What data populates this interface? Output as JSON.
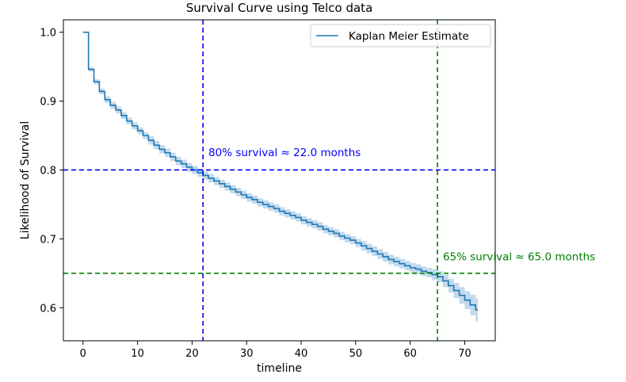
{
  "chart_data": {
    "type": "line",
    "title": "Survival Curve using Telco data",
    "xlabel": "timeline",
    "ylabel": "Likelihood of Survival",
    "xlim": [
      -3.6,
      75.6
    ],
    "ylim": [
      0.552,
      1.018
    ],
    "xticks": [
      0,
      10,
      20,
      30,
      40,
      50,
      60,
      70
    ],
    "yticks": [
      0.6,
      0.7,
      0.8,
      0.9,
      1.0
    ],
    "xtick_labels": [
      "0",
      "10",
      "20",
      "30",
      "40",
      "50",
      "60",
      "70"
    ],
    "ytick_labels": [
      "0.6",
      "0.7",
      "0.8",
      "0.9",
      "1.0"
    ],
    "legend_position": "top-right",
    "grid": false,
    "series": [
      {
        "name": "Kaplan Meier Estimate",
        "color": "#1f77b4",
        "ci_color": "#aecde7",
        "step": true,
        "x": [
          0,
          1,
          2,
          3,
          4,
          5,
          6,
          7,
          8,
          9,
          10,
          11,
          12,
          13,
          14,
          15,
          16,
          17,
          18,
          19,
          20,
          21,
          22,
          23,
          24,
          25,
          26,
          27,
          28,
          29,
          30,
          31,
          32,
          33,
          34,
          35,
          36,
          37,
          38,
          39,
          40,
          41,
          42,
          43,
          44,
          45,
          46,
          47,
          48,
          49,
          50,
          51,
          52,
          53,
          54,
          55,
          56,
          57,
          58,
          59,
          60,
          61,
          62,
          63,
          64,
          65,
          66,
          67,
          68,
          69,
          70,
          71,
          72
        ],
        "y": [
          1.0,
          0.946,
          0.928,
          0.914,
          0.902,
          0.894,
          0.887,
          0.879,
          0.871,
          0.864,
          0.857,
          0.85,
          0.843,
          0.836,
          0.83,
          0.825,
          0.819,
          0.813,
          0.809,
          0.804,
          0.8,
          0.796,
          0.792,
          0.788,
          0.784,
          0.78,
          0.776,
          0.772,
          0.768,
          0.764,
          0.76,
          0.757,
          0.753,
          0.75,
          0.747,
          0.744,
          0.74,
          0.737,
          0.734,
          0.731,
          0.727,
          0.724,
          0.721,
          0.718,
          0.714,
          0.711,
          0.708,
          0.704,
          0.701,
          0.698,
          0.694,
          0.69,
          0.686,
          0.682,
          0.678,
          0.674,
          0.67,
          0.667,
          0.664,
          0.661,
          0.658,
          0.656,
          0.653,
          0.651,
          0.648,
          0.645,
          0.639,
          0.632,
          0.625,
          0.618,
          0.611,
          0.604,
          0.597
        ],
        "ci_halfwidth": [
          0.0,
          0.003,
          0.004,
          0.004,
          0.005,
          0.005,
          0.005,
          0.005,
          0.005,
          0.005,
          0.005,
          0.005,
          0.006,
          0.006,
          0.006,
          0.006,
          0.006,
          0.006,
          0.006,
          0.006,
          0.006,
          0.006,
          0.006,
          0.006,
          0.006,
          0.006,
          0.006,
          0.006,
          0.006,
          0.006,
          0.006,
          0.006,
          0.006,
          0.006,
          0.006,
          0.006,
          0.006,
          0.006,
          0.006,
          0.006,
          0.006,
          0.006,
          0.006,
          0.006,
          0.006,
          0.006,
          0.006,
          0.006,
          0.006,
          0.006,
          0.006,
          0.007,
          0.007,
          0.007,
          0.007,
          0.007,
          0.007,
          0.007,
          0.007,
          0.007,
          0.007,
          0.007,
          0.007,
          0.007,
          0.008,
          0.008,
          0.009,
          0.01,
          0.011,
          0.012,
          0.013,
          0.015,
          0.017
        ],
        "x_end": 72.4
      }
    ],
    "reference_lines": [
      {
        "orientation": "horizontal",
        "value": 0.8,
        "color": "#0000ff"
      },
      {
        "orientation": "vertical",
        "value": 22.0,
        "color": "#0000ff"
      },
      {
        "orientation": "horizontal",
        "value": 0.65,
        "color": "#008000"
      },
      {
        "orientation": "vertical",
        "value": 65.0,
        "color": "#008000"
      }
    ],
    "annotations": [
      {
        "text": "80% survival ≈ 22.0 months",
        "x": 23.0,
        "y": 0.82,
        "color": "#0000ff"
      },
      {
        "text": "65% survival ≈ 65.0 months",
        "x": 66.0,
        "y": 0.669,
        "color": "#008000"
      }
    ]
  }
}
